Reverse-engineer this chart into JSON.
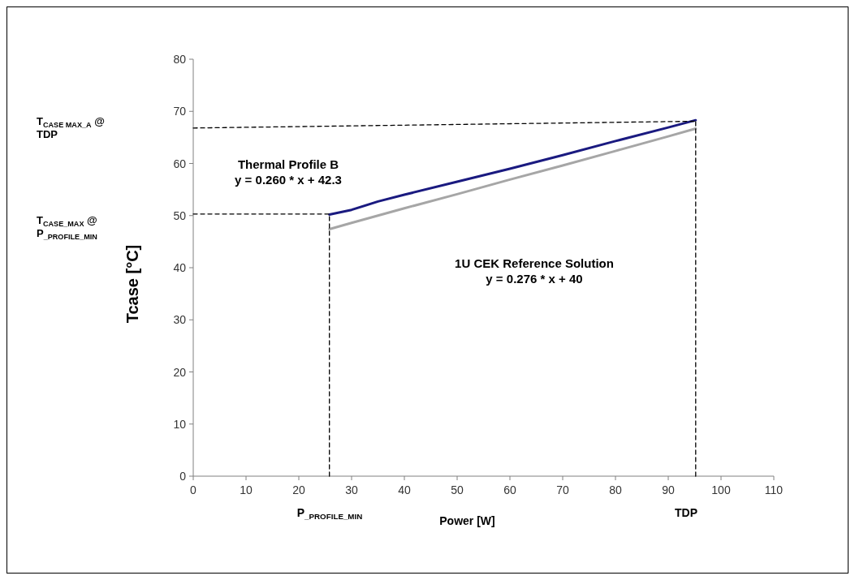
{
  "chart_data": {
    "type": "line",
    "xlabel": "Power [W]",
    "ylabel": "Tcase [°C]",
    "xlim": [
      0,
      110
    ],
    "xticks": [
      0,
      10,
      20,
      30,
      40,
      50,
      60,
      70,
      80,
      90,
      100,
      110
    ],
    "ylim": [
      0,
      80
    ],
    "yticks": [
      0,
      10,
      20,
      30,
      40,
      50,
      60,
      70,
      80
    ],
    "grid": false,
    "marker": "none",
    "series": [
      {
        "color": "#1a1a80",
        "x": [
          25.8,
          30,
          35,
          40,
          50,
          60,
          70,
          80,
          90,
          95.2
        ],
        "values": [
          50.2,
          51.1,
          52.7,
          54.0,
          56.5,
          59.0,
          61.6,
          64.3,
          66.9,
          68.3
        ]
      },
      {
        "color": "#a6a6a6",
        "x": [
          25.8,
          30,
          40,
          50,
          60,
          70,
          80,
          90,
          95.2
        ],
        "values": [
          47.4,
          48.6,
          51.4,
          54.1,
          56.9,
          59.6,
          62.4,
          65.2,
          66.7
        ]
      },
      {
        "color": "#000000",
        "line_style": "dashed",
        "x": [
          0,
          25.8
        ],
        "values": [
          50.3,
          50.3
        ]
      },
      {
        "color": "#000000",
        "line_style": "dashed",
        "x": [
          25.8,
          25.8
        ],
        "values": [
          0,
          50.2
        ]
      },
      {
        "color": "#000000",
        "line_style": "dashed",
        "x": [
          0,
          95.2
        ],
        "values": [
          66.8,
          68.1
        ]
      },
      {
        "color": "#000000",
        "line_style": "dashed",
        "x": [
          95.2,
          95.2
        ],
        "values": [
          0,
          68.3
        ]
      }
    ],
    "annotations": [
      "Thermal Profile B\ny = 0.260 * x + 42.3",
      "1U CEK Reference Solution\ny = 0.276 * x + 40",
      "P$_{_PROFILE_MIN}$",
      "TDP",
      "T$_{CASE_MAX}$ @\nP$_{_PROFILE_MIN}$",
      "T$_{CASE MAX_A}$ @\nTDP"
    ]
  }
}
